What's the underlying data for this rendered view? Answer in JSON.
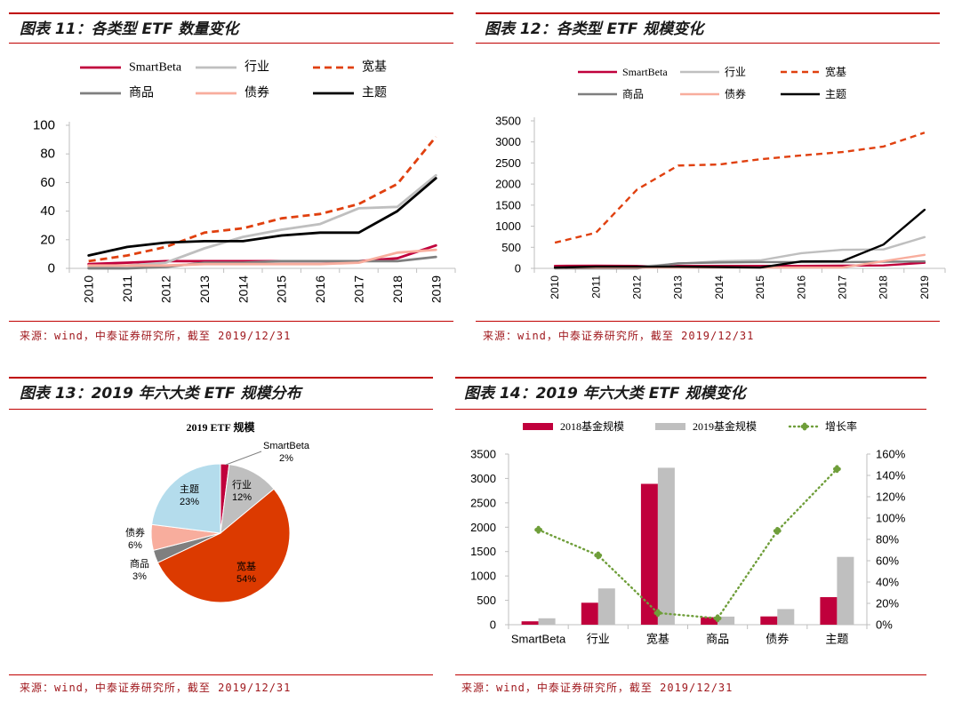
{
  "figures": [
    {
      "caption": "图表 11：各类型 ETF 数量变化",
      "source": "来源：wind，中泰证券研究所，截至 2019/12/31"
    },
    {
      "caption": "图表 12：各类型 ETF 规模变化",
      "source": "来源：wind，中泰证券研究所，截至 2019/12/31"
    },
    {
      "caption": "图表 13：2019 年六大类 ETF 规模分布",
      "source": "来源：wind，中泰证券研究所，截至 2019/12/31"
    },
    {
      "caption": "图表 14：2019 年六大类 ETF 规模变化",
      "source": "来源：wind，中泰证券研究所，截至 2019/12/31"
    }
  ],
  "colors": {
    "accent": "#c00000"
  },
  "chart_data": [
    {
      "type": "line",
      "x": [
        "2010",
        "2011",
        "2012",
        "2013",
        "2014",
        "2015",
        "2016",
        "2017",
        "2018",
        "2019"
      ],
      "ylim": [
        0,
        100
      ],
      "yticks": [
        0,
        20,
        40,
        60,
        80,
        100
      ],
      "grid": false,
      "legend_placement": "top",
      "series": [
        {
          "name": "SmartBeta",
          "color": "#c0003c",
          "style": "solid",
          "values": [
            3,
            4,
            5,
            5,
            5,
            5,
            5,
            5,
            7,
            16
          ]
        },
        {
          "name": "行业",
          "color": "#bfbfbf",
          "style": "solid",
          "values": [
            1,
            2,
            4,
            14,
            22,
            27,
            31,
            42,
            43,
            65
          ]
        },
        {
          "name": "宽基",
          "color": "#e0400f",
          "style": "dashed",
          "values": [
            5,
            9,
            15,
            25,
            28,
            35,
            38,
            45,
            59,
            92
          ]
        },
        {
          "name": "商品",
          "color": "#7f7f7f",
          "style": "solid",
          "values": [
            0,
            0,
            1,
            4,
            4,
            5,
            5,
            5,
            5,
            8
          ]
        },
        {
          "name": "债券",
          "color": "#f8ad9d",
          "style": "solid",
          "values": [
            2,
            2,
            2,
            3,
            3,
            3,
            3,
            4,
            11,
            13
          ]
        },
        {
          "name": "主题",
          "color": "#000000",
          "style": "solid",
          "values": [
            9,
            15,
            18,
            19,
            19,
            23,
            25,
            25,
            40,
            63
          ]
        }
      ]
    },
    {
      "type": "line",
      "x": [
        "2010",
        "2011",
        "2012",
        "2013",
        "2014",
        "2015",
        "2016",
        "2017",
        "2018",
        "2019"
      ],
      "ylim": [
        0,
        3500
      ],
      "yticks": [
        0,
        500,
        1000,
        1500,
        2000,
        2500,
        3000,
        3500
      ],
      "grid": false,
      "legend_placement": "top",
      "series": [
        {
          "name": "SmartBeta",
          "color": "#c0003c",
          "style": "solid",
          "values": [
            60,
            65,
            60,
            60,
            60,
            60,
            60,
            65,
            70,
            132
          ]
        },
        {
          "name": "行业",
          "color": "#bfbfbf",
          "style": "solid",
          "values": [
            10,
            20,
            40,
            110,
            170,
            190,
            360,
            440,
            450,
            743
          ]
        },
        {
          "name": "宽基",
          "color": "#e0400f",
          "style": "dashed",
          "values": [
            610,
            845,
            1870,
            2440,
            2465,
            2590,
            2680,
            2760,
            2890,
            3220
          ]
        },
        {
          "name": "商品",
          "color": "#7f7f7f",
          "style": "solid",
          "values": [
            0,
            0,
            0,
            120,
            140,
            150,
            150,
            150,
            155,
            165
          ]
        },
        {
          "name": "债券",
          "color": "#f8ad9d",
          "style": "solid",
          "values": [
            20,
            20,
            20,
            20,
            20,
            20,
            20,
            20,
            170,
            320
          ]
        },
        {
          "name": "主题",
          "color": "#000000",
          "style": "solid",
          "values": [
            20,
            40,
            40,
            40,
            30,
            20,
            165,
            170,
            565,
            1390
          ]
        }
      ]
    },
    {
      "type": "pie",
      "title": "2019 ETF 规模",
      "unit": "%",
      "slices": [
        {
          "label": "SmartBeta",
          "value": 2,
          "color": "#c0003c"
        },
        {
          "label": "行业",
          "value": 12,
          "color": "#bfbfbf"
        },
        {
          "label": "宽基",
          "value": 54,
          "color": "#dc3a00"
        },
        {
          "label": "商品",
          "value": 3,
          "color": "#7f7f7f"
        },
        {
          "label": "债券",
          "value": 6,
          "color": "#f8ad9d"
        },
        {
          "label": "主题",
          "value": 23,
          "color": "#b4dcec"
        }
      ]
    },
    {
      "type": "bar",
      "categories": [
        "SmartBeta",
        "行业",
        "宽基",
        "商品",
        "债券",
        "主题"
      ],
      "ylim": [
        0,
        3500
      ],
      "yticks": [
        0,
        500,
        1000,
        1500,
        2000,
        2500,
        3000,
        3500
      ],
      "y2lim": [
        0,
        160
      ],
      "y2ticks": [
        0,
        20,
        40,
        60,
        80,
        100,
        120,
        140,
        160
      ],
      "y2unit": "%",
      "grid": false,
      "legend_placement": "top",
      "series": [
        {
          "name": "2018基金规模",
          "kind": "bar",
          "color": "#c0003c",
          "values": [
            70,
            450,
            2890,
            155,
            170,
            565
          ]
        },
        {
          "name": "2019基金规模",
          "kind": "bar",
          "color": "#bfbfbf",
          "values": [
            132,
            743,
            3220,
            165,
            320,
            1390
          ]
        },
        {
          "name": "增长率",
          "kind": "line",
          "axis": "right",
          "style": "dotted",
          "color": "#6f9e3a",
          "values": [
            89,
            65,
            11,
            6,
            88,
            146
          ]
        }
      ]
    }
  ]
}
